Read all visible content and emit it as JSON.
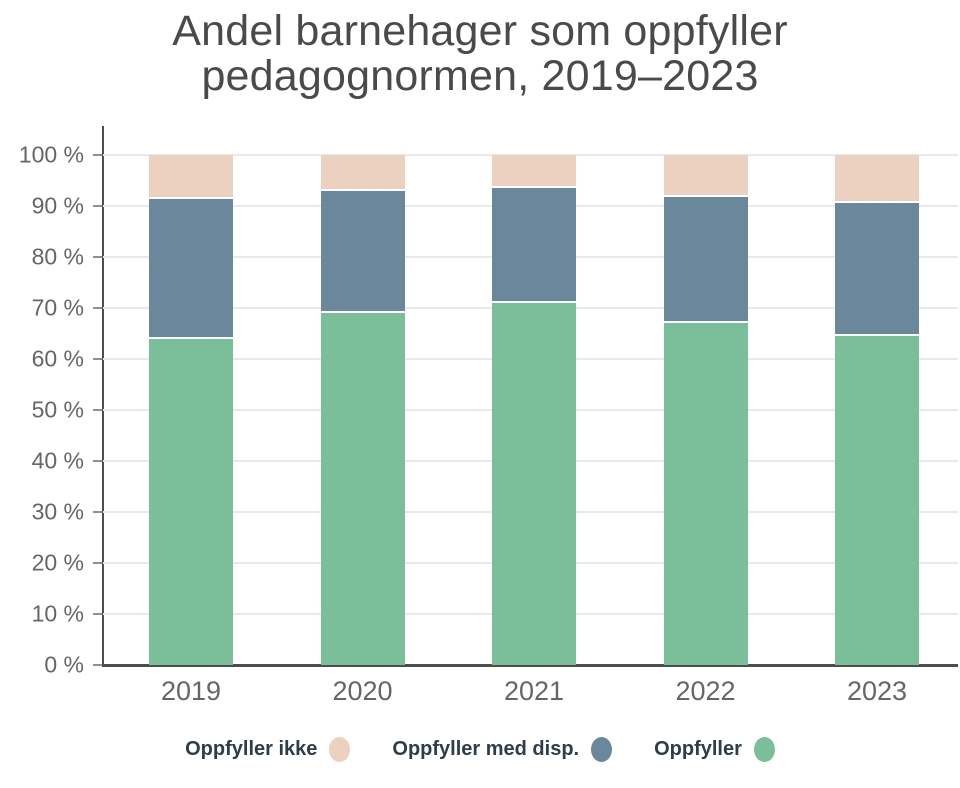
{
  "title": {
    "line1": "Andel barnehager som oppfyller",
    "line2": "pedagognormen, 2019–2023"
  },
  "chart_data": {
    "type": "bar",
    "stacked": true,
    "title": "Andel barnehager som oppfyller pedagognormen, 2019–2023",
    "categories": [
      "2019",
      "2020",
      "2021",
      "2022",
      "2023"
    ],
    "series": [
      {
        "name": "Oppfyller",
        "color": "#7abf9a",
        "values": [
          64,
          69,
          71,
          67,
          64.5
        ]
      },
      {
        "name": "Oppfyller med disp.",
        "color": "#6b879c",
        "values": [
          27.3,
          23.9,
          22.5,
          24.8,
          26
        ]
      },
      {
        "name": "Oppfyller ikke",
        "color": "#ecd0c0",
        "values": [
          8.7,
          7.1,
          6.5,
          8.2,
          9.5
        ]
      }
    ],
    "xlabel": "",
    "ylabel": "",
    "ylim": [
      0,
      100
    ],
    "ytick_step": 10,
    "ytick_suffix": " %",
    "grid": true,
    "legend_position": "bottom"
  },
  "axis": {
    "yticks": [
      "0 %",
      "10 %",
      "20 %",
      "30 %",
      "40 %",
      "50 %",
      "60 %",
      "70 %",
      "80 %",
      "90 %",
      "100 %"
    ]
  },
  "legend": {
    "items": [
      {
        "label": "Oppfyller ikke",
        "color": "#ecd0c0"
      },
      {
        "label": "Oppfyller med disp.",
        "color": "#6b879c"
      },
      {
        "label": "Oppfyller",
        "color": "#7abf9a"
      }
    ]
  },
  "colors": {
    "title_text": "#4a4a4a",
    "axis_text": "#666666",
    "legend_text": "#2e3d4c",
    "axis_line": "#4d4d4d",
    "gridline": "#e9e9e9",
    "background": "#ffffff"
  }
}
